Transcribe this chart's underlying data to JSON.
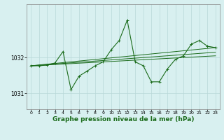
{
  "background_color": "#d8f0f0",
  "grid_color": "#b8d8d8",
  "line_color": "#1a6b1a",
  "marker_color": "#1a6b1a",
  "xlabel": "Graphe pression niveau de la mer (hPa)",
  "xlabel_fontsize": 6.5,
  "yticks": [
    1031,
    1032
  ],
  "xlim": [
    -0.5,
    23.5
  ],
  "ylim": [
    1030.55,
    1033.5
  ],
  "xticks": [
    0,
    1,
    2,
    3,
    4,
    5,
    6,
    7,
    8,
    9,
    10,
    11,
    12,
    13,
    14,
    15,
    16,
    17,
    18,
    19,
    20,
    21,
    22,
    23
  ],
  "series1": [
    1031.77,
    1031.77,
    1031.79,
    1031.85,
    1032.17,
    1031.1,
    1031.48,
    1031.62,
    1031.77,
    1031.88,
    1032.22,
    1032.48,
    1033.05,
    1031.88,
    1031.77,
    1031.32,
    1031.32,
    1031.68,
    1031.95,
    1032.05,
    1032.38,
    1032.48,
    1032.32,
    1032.28
  ],
  "series2_x": [
    0,
    23
  ],
  "series2_y": [
    1031.77,
    1032.28
  ],
  "series3_x": [
    0,
    23
  ],
  "series3_y": [
    1031.77,
    1032.15
  ],
  "series4_x": [
    0,
    23
  ],
  "series4_y": [
    1031.77,
    1032.05
  ]
}
